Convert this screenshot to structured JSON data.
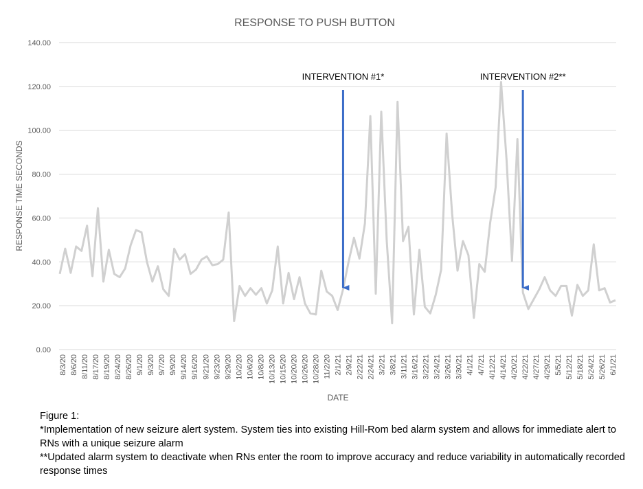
{
  "chart_data": {
    "type": "line",
    "title": "RESPONSE TO PUSH BUTTON",
    "xlabel": "DATE",
    "ylabel": "RESPONSE TIME SECONDS",
    "ylim": [
      0,
      140
    ],
    "yticks": [
      "0.00",
      "20.00",
      "40.00",
      "60.00",
      "80.00",
      "100.00",
      "120.00",
      "140.00"
    ],
    "grid": true,
    "legend": "none",
    "line_color": "#d0d0d0",
    "arrow_color": "#3a6cc8",
    "xtick_labels": [
      "8/3/20",
      "8/6/20",
      "8/11/20",
      "8/17/20",
      "8/19/20",
      "8/24/20",
      "8/26/20",
      "9/1/20",
      "9/3/20",
      "9/7/20",
      "9/9/20",
      "9/14/20",
      "9/16/20",
      "9/21/20",
      "9/23/20",
      "9/29/20",
      "10/2/20",
      "10/6/20",
      "10/8/20",
      "10/13/20",
      "10/15/20",
      "10/20/20",
      "10/26/20",
      "10/28/20",
      "11/2/20",
      "2/1/21",
      "2/9/21",
      "2/22/21",
      "2/24/21",
      "3/2/21",
      "3/8/21",
      "3/11/21",
      "3/16/21",
      "3/22/21",
      "3/24/21",
      "3/26/21",
      "3/30/21",
      "4/1/21",
      "4/7/21",
      "4/12/21",
      "4/14/21",
      "4/20/21",
      "4/22/21",
      "4/27/21",
      "4/29/21",
      "5/5/21",
      "5/12/21",
      "5/18/21",
      "5/24/21",
      "5/26/21",
      "6/1/21"
    ],
    "values": [
      34.5,
      46,
      35,
      47,
      45,
      56.5,
      33.5,
      64.5,
      31,
      45.5,
      34.5,
      33,
      37,
      47.5,
      54.5,
      53.5,
      40,
      31,
      38,
      27.5,
      24.5,
      46,
      41,
      43.5,
      34.5,
      36.5,
      41,
      42.5,
      38.5,
      39,
      41,
      62.5,
      13,
      29,
      24.5,
      28,
      25,
      28,
      21,
      27,
      47,
      21,
      35,
      23,
      33,
      21,
      16.5,
      16,
      36,
      26.5,
      24.5,
      18,
      27.5,
      40,
      51,
      41.5,
      57.5,
      106.5,
      25.5,
      108.5,
      50,
      12,
      113,
      49.5,
      56,
      16,
      45.5,
      19.5,
      16.5,
      25,
      36.5,
      98.5,
      62,
      36,
      49.5,
      43,
      14.5,
      39,
      35.5,
      58,
      74,
      122,
      86.5,
      40.5,
      96,
      26,
      18.5,
      23,
      27.5,
      33,
      27,
      24.5,
      29,
      29,
      15.5,
      29.5,
      24.5,
      27,
      48,
      27,
      28,
      21.5,
      22.5
    ],
    "annotations": [
      {
        "label": "INTERVENTION #1*",
        "x_index": 52
      },
      {
        "label": "INTERVENTION #2**",
        "x_index": 85
      }
    ]
  },
  "caption": {
    "line1": "Figure 1:",
    "line2": "*Implementation of new seizure alert system. System ties into existing Hill-Rom bed alarm system and allows for immediate alert to RNs with a unique seizure alarm",
    "line3": "**Updated alarm system to deactivate when RNs enter the room to improve accuracy and reduce variability in automatically recorded response times"
  }
}
